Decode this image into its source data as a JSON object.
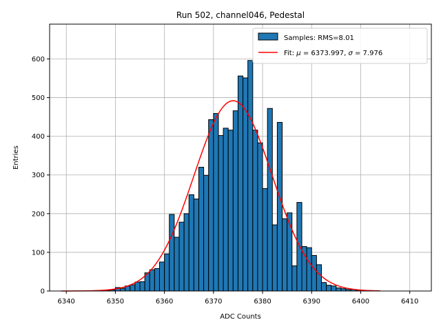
{
  "chart_data": {
    "type": "bar",
    "title": "Run 502, channel046, Pedestal",
    "xlabel": "ADC Counts",
    "ylabel": "Entries",
    "xlim": [
      6336.6,
      6414.4
    ],
    "ylim": [
      0,
      690
    ],
    "xticks": [
      6340,
      6350,
      6360,
      6370,
      6380,
      6390,
      6400,
      6410
    ],
    "yticks": [
      0,
      100,
      200,
      300,
      400,
      500,
      600
    ],
    "grid": true,
    "legend_position": "top-right",
    "bin_width": 1,
    "histogram": {
      "name": "Samples: RMS=8.01",
      "color": "#1f77b4",
      "edgecolor": "#000000",
      "bins": [
        [
          6347,
          1
        ],
        [
          6348,
          2
        ],
        [
          6349,
          3
        ],
        [
          6350,
          9
        ],
        [
          6351,
          7
        ],
        [
          6352,
          13
        ],
        [
          6353,
          16
        ],
        [
          6354,
          23
        ],
        [
          6355,
          24
        ],
        [
          6356,
          47
        ],
        [
          6357,
          55
        ],
        [
          6358,
          58
        ],
        [
          6359,
          75
        ],
        [
          6360,
          96
        ],
        [
          6361,
          198
        ],
        [
          6362,
          139
        ],
        [
          6363,
          178
        ],
        [
          6364,
          200
        ],
        [
          6365,
          249
        ],
        [
          6366,
          238
        ],
        [
          6367,
          320
        ],
        [
          6368,
          299
        ],
        [
          6369,
          443
        ],
        [
          6370,
          459
        ],
        [
          6371,
          402
        ],
        [
          6372,
          421
        ],
        [
          6373,
          416
        ],
        [
          6374,
          466
        ],
        [
          6375,
          556
        ],
        [
          6376,
          551
        ],
        [
          6377,
          596
        ],
        [
          6378,
          416
        ],
        [
          6379,
          383
        ],
        [
          6380,
          265
        ],
        [
          6381,
          472
        ],
        [
          6382,
          171
        ],
        [
          6383,
          436
        ],
        [
          6384,
          187
        ],
        [
          6385,
          202
        ],
        [
          6386,
          65
        ],
        [
          6387,
          229
        ],
        [
          6388,
          115
        ],
        [
          6389,
          112
        ],
        [
          6390,
          92
        ],
        [
          6391,
          68
        ],
        [
          6392,
          22
        ],
        [
          6393,
          15
        ],
        [
          6394,
          13
        ],
        [
          6395,
          8
        ],
        [
          6396,
          6
        ],
        [
          6397,
          4
        ],
        [
          6398,
          4
        ],
        [
          6399,
          2
        ],
        [
          6400,
          1
        ]
      ]
    },
    "fit": {
      "name": "Fit: μ = 6373.997, σ = 7.976",
      "legend_prefix": "Fit: ",
      "mu_symbol": "μ",
      "mu_value": " = 6373.997, ",
      "sigma_symbol": "σ",
      "sigma_value": " = 7.976",
      "color": "#ff0000",
      "type": "gaussian",
      "mu": 6373.997,
      "sigma": 7.976,
      "amplitude": 492,
      "x_range": [
        6339,
        6404
      ]
    }
  }
}
